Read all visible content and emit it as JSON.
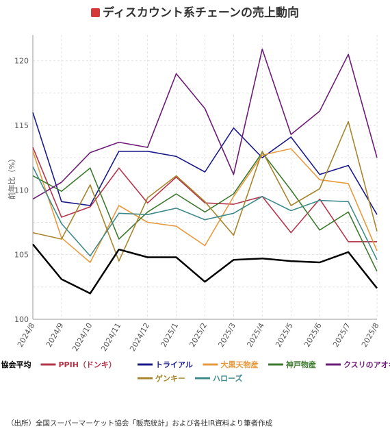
{
  "title": "ディスカウント系チェーンの売上動向",
  "colors": {
    "title_marker": "#d43a3a"
  },
  "source": "（出所）全国スーパーマーケット協会「販売統計」および各社IR資料より筆者作成",
  "chart_data": {
    "type": "line",
    "title": "ディスカウント系チェーンの売上動向",
    "xlabel": "",
    "ylabel": "前年比（%）",
    "ylim": [
      100,
      122
    ],
    "yticks": [
      100,
      105,
      110,
      115,
      120
    ],
    "grid": true,
    "legend_position": "bottom",
    "x": [
      "2024/8",
      "2024/9",
      "2024/10",
      "2024/11",
      "2024/12",
      "2025/1",
      "2025/2",
      "2025/3",
      "2025/4",
      "2025/5",
      "2025/6",
      "2025/7",
      "2025/8"
    ],
    "series": [
      {
        "name": "協会平均",
        "color": "#000000",
        "width": 2.5,
        "values": [
          105.8,
          103.1,
          102.0,
          105.4,
          104.8,
          104.8,
          102.9,
          104.6,
          104.7,
          104.5,
          104.4,
          105.2,
          102.4
        ]
      },
      {
        "name": "PPIH（ドンキ）",
        "color": "#b5354a",
        "width": 1.6,
        "values": [
          113.3,
          107.9,
          108.7,
          111.7,
          109.0,
          111.0,
          109.0,
          108.9,
          109.5,
          106.7,
          109.3,
          106.0,
          106.0
        ]
      },
      {
        "name": "トライアル",
        "color": "#1a1a8a",
        "width": 1.6,
        "values": [
          116.0,
          109.1,
          108.8,
          113.0,
          113.0,
          112.6,
          111.4,
          114.8,
          112.5,
          114.1,
          111.2,
          111.9,
          108.1
        ]
      },
      {
        "name": "大黒天物産",
        "color": "#e8993d",
        "width": 1.6,
        "values": [
          113.0,
          106.3,
          104.4,
          108.8,
          107.5,
          107.2,
          105.7,
          109.5,
          112.7,
          113.2,
          110.8,
          110.5,
          105.3
        ]
      },
      {
        "name": "神戸物産",
        "color": "#3c7a2e",
        "width": 1.6,
        "values": [
          111.1,
          109.9,
          111.7,
          106.2,
          108.3,
          109.7,
          108.3,
          109.7,
          112.9,
          110.0,
          106.9,
          108.3,
          103.7
        ]
      },
      {
        "name": "クスリのアオキ",
        "color": "#6e1a78",
        "width": 1.6,
        "values": [
          109.3,
          110.6,
          112.9,
          113.7,
          113.3,
          119.0,
          116.3,
          111.2,
          120.9,
          114.3,
          116.1,
          120.5,
          112.5
        ]
      },
      {
        "name": "ゲンキー",
        "color": "#a8852c",
        "width": 1.6,
        "values": [
          106.7,
          106.2,
          110.4,
          104.5,
          109.4,
          111.1,
          109.1,
          106.5,
          113.0,
          108.8,
          110.1,
          115.3,
          106.8
        ]
      },
      {
        "name": "ハローズ",
        "color": "#3f8a8a",
        "width": 1.6,
        "values": [
          111.8,
          107.4,
          104.9,
          108.2,
          108.1,
          108.6,
          107.7,
          108.2,
          109.5,
          108.4,
          109.2,
          109.1,
          104.6
        ]
      }
    ]
  }
}
